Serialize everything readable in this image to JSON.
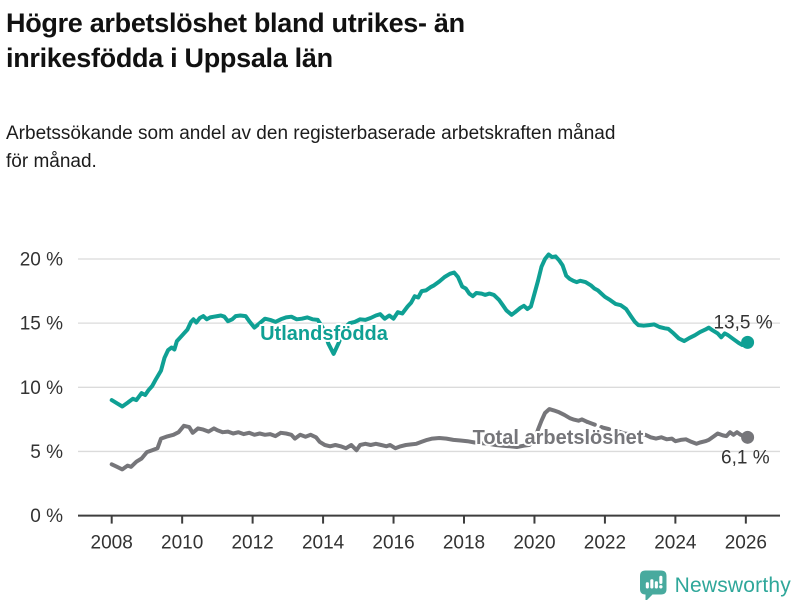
{
  "header": {
    "title_lines": [
      "Högre arbetslöshet bland utrikes- än",
      "inrikesfödda i Uppsala län"
    ],
    "subtitle_lines": [
      "Arbetssökande som andel av den registerbaserade arbetskraften månad",
      "för månad."
    ]
  },
  "footer": {
    "brand": "Newsworthy"
  },
  "colors": {
    "accent_teal": "#0fa094",
    "series_gray": "#76767a",
    "logo_teal": "#48aa9e",
    "wordmark_teal": "#2fa79a",
    "gridline": "#dbdbdb",
    "axis": "#3d3d3d",
    "text_dark": "#333333"
  },
  "chart_data": {
    "type": "line",
    "unit": "%",
    "grid": "horizontal",
    "x_axis": {
      "range": [
        2007.0,
        2027.0
      ],
      "ticks": [
        {
          "value": 2008,
          "label": "2008"
        },
        {
          "value": 2010,
          "label": "2010"
        },
        {
          "value": 2012,
          "label": "2012"
        },
        {
          "value": 2014,
          "label": "2014"
        },
        {
          "value": 2016,
          "label": "2016"
        },
        {
          "value": 2018,
          "label": "2018"
        },
        {
          "value": 2020,
          "label": "2020"
        },
        {
          "value": 2022,
          "label": "2022"
        },
        {
          "value": 2024,
          "label": "2024"
        },
        {
          "value": 2026,
          "label": "2026"
        }
      ]
    },
    "y_axis": {
      "range": [
        0,
        21
      ],
      "ticks": [
        {
          "value": 0,
          "label": "0 %"
        },
        {
          "value": 5,
          "label": "5 %"
        },
        {
          "value": 10,
          "label": "10 %"
        },
        {
          "value": 15,
          "label": "15 %"
        },
        {
          "value": 20,
          "label": "20 %"
        }
      ]
    },
    "series": [
      {
        "name": "Utlandsfödda",
        "color": "#0fa094",
        "end_label": "13,5 %",
        "end_value": 13.5,
        "points": [
          [
            2008.0,
            9.0
          ],
          [
            2008.15,
            8.75
          ],
          [
            2008.3,
            8.5
          ],
          [
            2008.45,
            8.8
          ],
          [
            2008.6,
            9.1
          ],
          [
            2008.7,
            9.0
          ],
          [
            2008.85,
            9.55
          ],
          [
            2008.95,
            9.4
          ],
          [
            2009.05,
            9.8
          ],
          [
            2009.15,
            10.1
          ],
          [
            2009.25,
            10.6
          ],
          [
            2009.4,
            11.3
          ],
          [
            2009.5,
            12.3
          ],
          [
            2009.6,
            12.9
          ],
          [
            2009.7,
            13.1
          ],
          [
            2009.78,
            12.95
          ],
          [
            2009.85,
            13.6
          ],
          [
            2009.95,
            13.9
          ],
          [
            2010.05,
            14.2
          ],
          [
            2010.15,
            14.5
          ],
          [
            2010.25,
            15.1
          ],
          [
            2010.32,
            15.3
          ],
          [
            2010.4,
            15.05
          ],
          [
            2010.5,
            15.4
          ],
          [
            2010.6,
            15.55
          ],
          [
            2010.7,
            15.3
          ],
          [
            2010.8,
            15.45
          ],
          [
            2010.9,
            15.5
          ],
          [
            2011.0,
            15.55
          ],
          [
            2011.1,
            15.6
          ],
          [
            2011.2,
            15.5
          ],
          [
            2011.3,
            15.15
          ],
          [
            2011.42,
            15.3
          ],
          [
            2011.52,
            15.55
          ],
          [
            2011.65,
            15.6
          ],
          [
            2011.8,
            15.55
          ],
          [
            2011.92,
            15.1
          ],
          [
            2012.05,
            14.65
          ],
          [
            2012.2,
            15.0
          ],
          [
            2012.35,
            15.35
          ],
          [
            2012.5,
            15.25
          ],
          [
            2012.65,
            15.1
          ],
          [
            2012.8,
            15.3
          ],
          [
            2012.95,
            15.45
          ],
          [
            2013.1,
            15.5
          ],
          [
            2013.25,
            15.3
          ],
          [
            2013.4,
            15.35
          ],
          [
            2013.55,
            15.45
          ],
          [
            2013.7,
            15.3
          ],
          [
            2013.85,
            15.25
          ],
          [
            2014.0,
            14.6
          ],
          [
            2014.15,
            13.4
          ],
          [
            2014.3,
            12.6
          ],
          [
            2014.45,
            13.5
          ],
          [
            2014.6,
            14.6
          ],
          [
            2014.75,
            15.0
          ],
          [
            2014.9,
            15.1
          ],
          [
            2015.05,
            15.3
          ],
          [
            2015.2,
            15.25
          ],
          [
            2015.35,
            15.4
          ],
          [
            2015.5,
            15.6
          ],
          [
            2015.62,
            15.7
          ],
          [
            2015.75,
            15.35
          ],
          [
            2015.88,
            15.6
          ],
          [
            2016.0,
            15.35
          ],
          [
            2016.12,
            15.85
          ],
          [
            2016.25,
            15.75
          ],
          [
            2016.4,
            16.3
          ],
          [
            2016.5,
            16.6
          ],
          [
            2016.6,
            17.1
          ],
          [
            2016.7,
            17.0
          ],
          [
            2016.8,
            17.5
          ],
          [
            2016.92,
            17.55
          ],
          [
            2017.05,
            17.8
          ],
          [
            2017.15,
            17.95
          ],
          [
            2017.3,
            18.25
          ],
          [
            2017.45,
            18.6
          ],
          [
            2017.6,
            18.85
          ],
          [
            2017.72,
            18.95
          ],
          [
            2017.83,
            18.6
          ],
          [
            2017.95,
            17.85
          ],
          [
            2018.05,
            17.7
          ],
          [
            2018.15,
            17.3
          ],
          [
            2018.25,
            17.1
          ],
          [
            2018.35,
            17.35
          ],
          [
            2018.5,
            17.3
          ],
          [
            2018.6,
            17.2
          ],
          [
            2018.72,
            17.3
          ],
          [
            2018.85,
            17.2
          ],
          [
            2019.0,
            16.8
          ],
          [
            2019.1,
            16.4
          ],
          [
            2019.2,
            16.0
          ],
          [
            2019.35,
            15.65
          ],
          [
            2019.45,
            15.85
          ],
          [
            2019.6,
            16.2
          ],
          [
            2019.7,
            16.35
          ],
          [
            2019.8,
            16.1
          ],
          [
            2019.9,
            16.3
          ],
          [
            2020.0,
            17.3
          ],
          [
            2020.1,
            18.3
          ],
          [
            2020.2,
            19.4
          ],
          [
            2020.3,
            20.0
          ],
          [
            2020.4,
            20.35
          ],
          [
            2020.5,
            20.15
          ],
          [
            2020.6,
            20.2
          ],
          [
            2020.7,
            19.9
          ],
          [
            2020.8,
            19.5
          ],
          [
            2020.9,
            18.7
          ],
          [
            2021.0,
            18.45
          ],
          [
            2021.1,
            18.3
          ],
          [
            2021.2,
            18.2
          ],
          [
            2021.3,
            18.3
          ],
          [
            2021.45,
            18.2
          ],
          [
            2021.6,
            17.95
          ],
          [
            2021.7,
            17.7
          ],
          [
            2021.8,
            17.55
          ],
          [
            2021.9,
            17.3
          ],
          [
            2022.0,
            17.05
          ],
          [
            2022.15,
            16.8
          ],
          [
            2022.3,
            16.5
          ],
          [
            2022.45,
            16.4
          ],
          [
            2022.6,
            16.1
          ],
          [
            2022.75,
            15.5
          ],
          [
            2022.85,
            15.1
          ],
          [
            2022.95,
            14.85
          ],
          [
            2023.1,
            14.8
          ],
          [
            2023.25,
            14.85
          ],
          [
            2023.4,
            14.9
          ],
          [
            2023.55,
            14.7
          ],
          [
            2023.7,
            14.6
          ],
          [
            2023.8,
            14.55
          ],
          [
            2023.95,
            14.2
          ],
          [
            2024.1,
            13.8
          ],
          [
            2024.25,
            13.6
          ],
          [
            2024.4,
            13.85
          ],
          [
            2024.55,
            14.05
          ],
          [
            2024.7,
            14.3
          ],
          [
            2024.85,
            14.5
          ],
          [
            2024.95,
            14.65
          ],
          [
            2025.05,
            14.45
          ],
          [
            2025.2,
            14.2
          ],
          [
            2025.3,
            13.9
          ],
          [
            2025.4,
            14.2
          ],
          [
            2025.5,
            14.05
          ],
          [
            2025.65,
            13.75
          ],
          [
            2025.8,
            13.45
          ],
          [
            2025.9,
            13.3
          ],
          [
            2026.05,
            13.5
          ]
        ]
      },
      {
        "name": "Total arbetslöshet",
        "color": "#76767a",
        "end_label": "6,1 %",
        "end_value": 6.1,
        "dashed_between": [
          2021.55,
          2022.48
        ],
        "points": [
          [
            2008.0,
            4.0
          ],
          [
            2008.15,
            3.8
          ],
          [
            2008.3,
            3.6
          ],
          [
            2008.45,
            3.9
          ],
          [
            2008.55,
            3.8
          ],
          [
            2008.7,
            4.2
          ],
          [
            2008.85,
            4.45
          ],
          [
            2009.0,
            4.95
          ],
          [
            2009.15,
            5.1
          ],
          [
            2009.3,
            5.25
          ],
          [
            2009.4,
            6.0
          ],
          [
            2009.55,
            6.15
          ],
          [
            2009.75,
            6.3
          ],
          [
            2009.9,
            6.5
          ],
          [
            2010.05,
            7.0
          ],
          [
            2010.2,
            6.9
          ],
          [
            2010.3,
            6.45
          ],
          [
            2010.45,
            6.8
          ],
          [
            2010.6,
            6.7
          ],
          [
            2010.75,
            6.55
          ],
          [
            2010.9,
            6.8
          ],
          [
            2011.0,
            6.65
          ],
          [
            2011.15,
            6.5
          ],
          [
            2011.3,
            6.55
          ],
          [
            2011.45,
            6.4
          ],
          [
            2011.6,
            6.5
          ],
          [
            2011.75,
            6.35
          ],
          [
            2011.9,
            6.45
          ],
          [
            2012.05,
            6.3
          ],
          [
            2012.2,
            6.4
          ],
          [
            2012.35,
            6.3
          ],
          [
            2012.5,
            6.35
          ],
          [
            2012.65,
            6.2
          ],
          [
            2012.8,
            6.45
          ],
          [
            2012.95,
            6.4
          ],
          [
            2013.1,
            6.3
          ],
          [
            2013.2,
            6.0
          ],
          [
            2013.35,
            6.3
          ],
          [
            2013.5,
            6.15
          ],
          [
            2013.65,
            6.3
          ],
          [
            2013.8,
            6.1
          ],
          [
            2013.9,
            5.75
          ],
          [
            2014.05,
            5.5
          ],
          [
            2014.2,
            5.4
          ],
          [
            2014.35,
            5.5
          ],
          [
            2014.5,
            5.4
          ],
          [
            2014.65,
            5.25
          ],
          [
            2014.8,
            5.5
          ],
          [
            2014.95,
            5.1
          ],
          [
            2015.05,
            5.5
          ],
          [
            2015.2,
            5.6
          ],
          [
            2015.35,
            5.5
          ],
          [
            2015.5,
            5.6
          ],
          [
            2015.65,
            5.5
          ],
          [
            2015.8,
            5.4
          ],
          [
            2015.9,
            5.5
          ],
          [
            2016.05,
            5.25
          ],
          [
            2016.2,
            5.4
          ],
          [
            2016.35,
            5.5
          ],
          [
            2016.5,
            5.55
          ],
          [
            2016.65,
            5.6
          ],
          [
            2016.8,
            5.75
          ],
          [
            2016.95,
            5.9
          ],
          [
            2017.1,
            6.0
          ],
          [
            2017.3,
            6.05
          ],
          [
            2017.5,
            6.0
          ],
          [
            2017.7,
            5.9
          ],
          [
            2017.9,
            5.85
          ],
          [
            2018.1,
            5.8
          ],
          [
            2018.3,
            5.7
          ],
          [
            2018.5,
            5.65
          ],
          [
            2018.7,
            5.6
          ],
          [
            2018.9,
            5.5
          ],
          [
            2019.1,
            5.45
          ],
          [
            2019.3,
            5.4
          ],
          [
            2019.5,
            5.35
          ],
          [
            2019.7,
            5.45
          ],
          [
            2019.85,
            5.5
          ],
          [
            2020.0,
            5.9
          ],
          [
            2020.1,
            6.7
          ],
          [
            2020.2,
            7.4
          ],
          [
            2020.3,
            8.0
          ],
          [
            2020.42,
            8.3
          ],
          [
            2020.55,
            8.2
          ],
          [
            2020.7,
            8.05
          ],
          [
            2020.85,
            7.85
          ],
          [
            2021.0,
            7.6
          ],
          [
            2021.1,
            7.5
          ],
          [
            2021.25,
            7.4
          ],
          [
            2021.35,
            7.5
          ],
          [
            2021.5,
            7.3
          ],
          [
            2021.65,
            7.15
          ],
          [
            2021.8,
            7.0
          ],
          [
            2021.95,
            6.85
          ],
          [
            2022.1,
            6.75
          ],
          [
            2022.25,
            6.65
          ],
          [
            2022.4,
            6.55
          ],
          [
            2022.55,
            6.4
          ],
          [
            2022.7,
            6.35
          ],
          [
            2022.85,
            6.3
          ],
          [
            2023.0,
            6.25
          ],
          [
            2023.15,
            6.3
          ],
          [
            2023.3,
            6.1
          ],
          [
            2023.45,
            6.0
          ],
          [
            2023.6,
            6.1
          ],
          [
            2023.75,
            5.95
          ],
          [
            2023.9,
            6.0
          ],
          [
            2024.0,
            5.8
          ],
          [
            2024.15,
            5.9
          ],
          [
            2024.3,
            5.95
          ],
          [
            2024.45,
            5.75
          ],
          [
            2024.6,
            5.6
          ],
          [
            2024.7,
            5.7
          ],
          [
            2024.85,
            5.8
          ],
          [
            2024.95,
            5.9
          ],
          [
            2025.1,
            6.2
          ],
          [
            2025.2,
            6.4
          ],
          [
            2025.35,
            6.25
          ],
          [
            2025.45,
            6.2
          ],
          [
            2025.55,
            6.5
          ],
          [
            2025.65,
            6.3
          ],
          [
            2025.75,
            6.5
          ],
          [
            2025.85,
            6.3
          ],
          [
            2025.95,
            6.2
          ],
          [
            2026.05,
            6.1
          ]
        ]
      }
    ]
  }
}
